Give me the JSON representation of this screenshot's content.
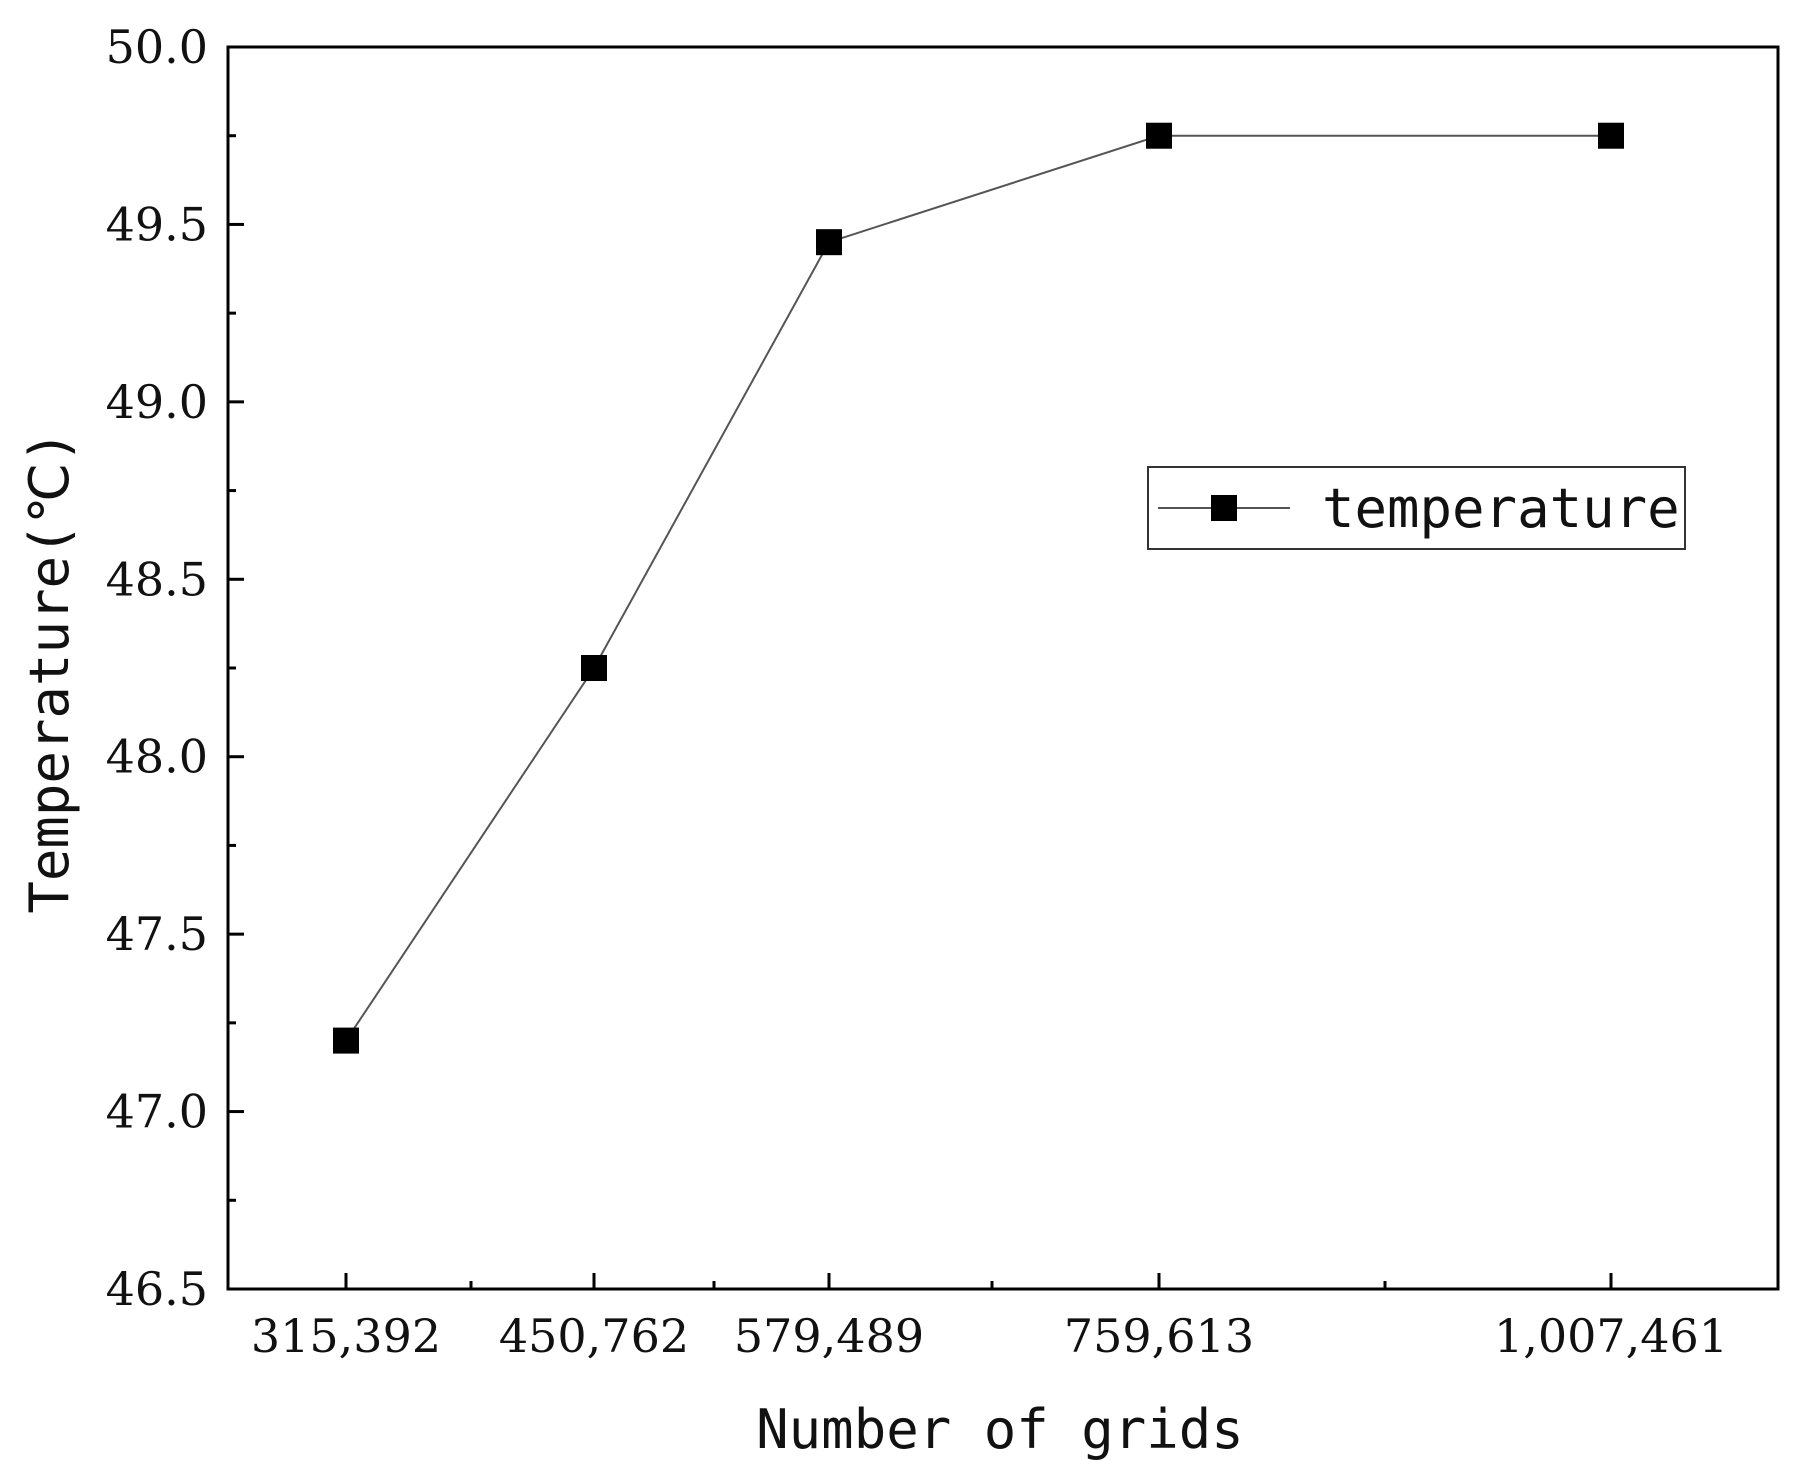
{
  "chart_data": {
    "type": "line",
    "xlabel": "Number of grids",
    "ylabel": "Temperature(℃)",
    "ylim": [
      46.5,
      50.0
    ],
    "yticks": [
      "46.5",
      "47.0",
      "47.5",
      "48.0",
      "48.5",
      "49.0",
      "49.5",
      "50.0"
    ],
    "categories": [
      "315,392",
      "450,762",
      "579,489",
      "759,613",
      "1,007,461"
    ],
    "x": [
      315392,
      450762,
      579489,
      759613,
      1007461
    ],
    "series": [
      {
        "name": "temperature",
        "values": [
          47.2,
          48.25,
          49.45,
          49.75,
          49.75
        ]
      }
    ],
    "legend": {
      "position": "middle-right",
      "marker": "square"
    },
    "grid": false,
    "colors": {
      "line": "#555555",
      "marker": "#000000",
      "axis": "#000000"
    }
  }
}
